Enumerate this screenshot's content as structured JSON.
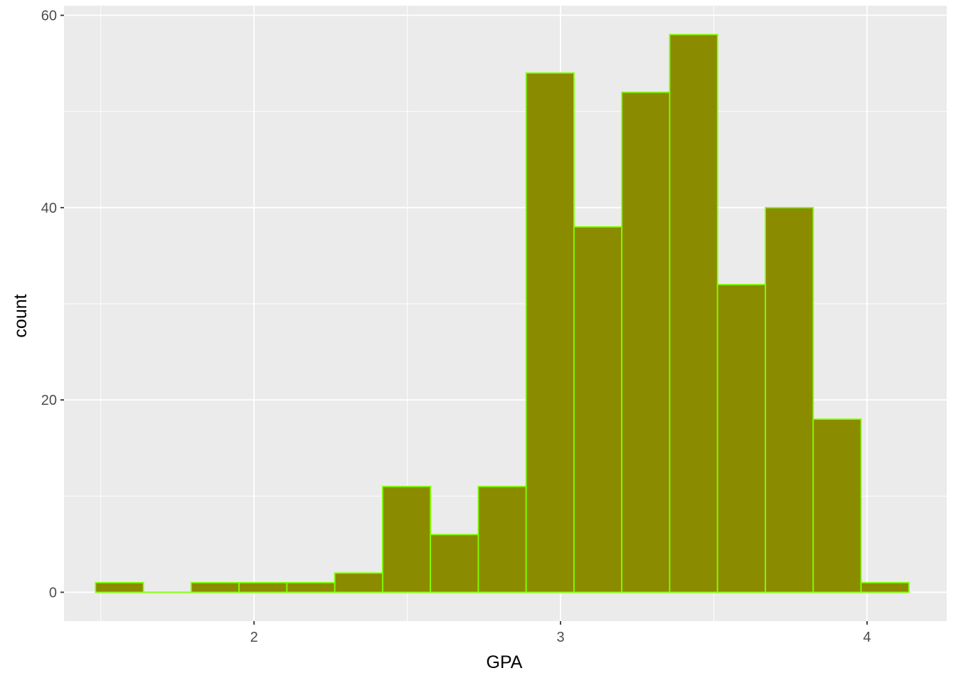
{
  "chart_data": {
    "type": "bar",
    "subtype": "histogram",
    "xlabel": "GPA",
    "ylabel": "count",
    "xlim": [
      1.38,
      4.26
    ],
    "ylim": [
      -3,
      61
    ],
    "x_ticks": [
      {
        "value": 2,
        "label": "2"
      },
      {
        "value": 3,
        "label": "3"
      },
      {
        "value": 4,
        "label": "4"
      }
    ],
    "x_minor_ticks": [
      1.5,
      2.5,
      3.5
    ],
    "y_ticks": [
      {
        "value": 0,
        "label": "0"
      },
      {
        "value": 20,
        "label": "20"
      },
      {
        "value": 40,
        "label": "40"
      },
      {
        "value": 60,
        "label": "60"
      }
    ],
    "y_minor_ticks": [
      10,
      30,
      50
    ],
    "bins": [
      {
        "x0": 1.4828,
        "x1": 1.6389,
        "count": 1
      },
      {
        "x0": 1.6389,
        "x1": 1.795,
        "count": 0
      },
      {
        "x0": 1.795,
        "x1": 1.9511,
        "count": 1
      },
      {
        "x0": 1.9511,
        "x1": 2.1072,
        "count": 1
      },
      {
        "x0": 2.1072,
        "x1": 2.2633,
        "count": 1
      },
      {
        "x0": 2.2633,
        "x1": 2.4194,
        "count": 2
      },
      {
        "x0": 2.4194,
        "x1": 2.5755,
        "count": 11
      },
      {
        "x0": 2.5755,
        "x1": 2.7316,
        "count": 6
      },
      {
        "x0": 2.7316,
        "x1": 2.8877,
        "count": 11
      },
      {
        "x0": 2.8877,
        "x1": 3.0438,
        "count": 54
      },
      {
        "x0": 3.0438,
        "x1": 3.1999,
        "count": 38
      },
      {
        "x0": 3.1999,
        "x1": 3.356,
        "count": 52
      },
      {
        "x0": 3.356,
        "x1": 3.5121,
        "count": 58
      },
      {
        "x0": 3.5121,
        "x1": 3.6682,
        "count": 32
      },
      {
        "x0": 3.6682,
        "x1": 3.8243,
        "count": 40
      },
      {
        "x0": 3.8243,
        "x1": 3.9804,
        "count": 18
      },
      {
        "x0": 3.9804,
        "x1": 4.1365,
        "count": 1
      }
    ],
    "bar_fill": "#8b8b00",
    "bar_outline": "#7fff00",
    "panel_background": "#ebebeb",
    "grid_color": "#ffffff",
    "grid": true,
    "legend": "none"
  }
}
